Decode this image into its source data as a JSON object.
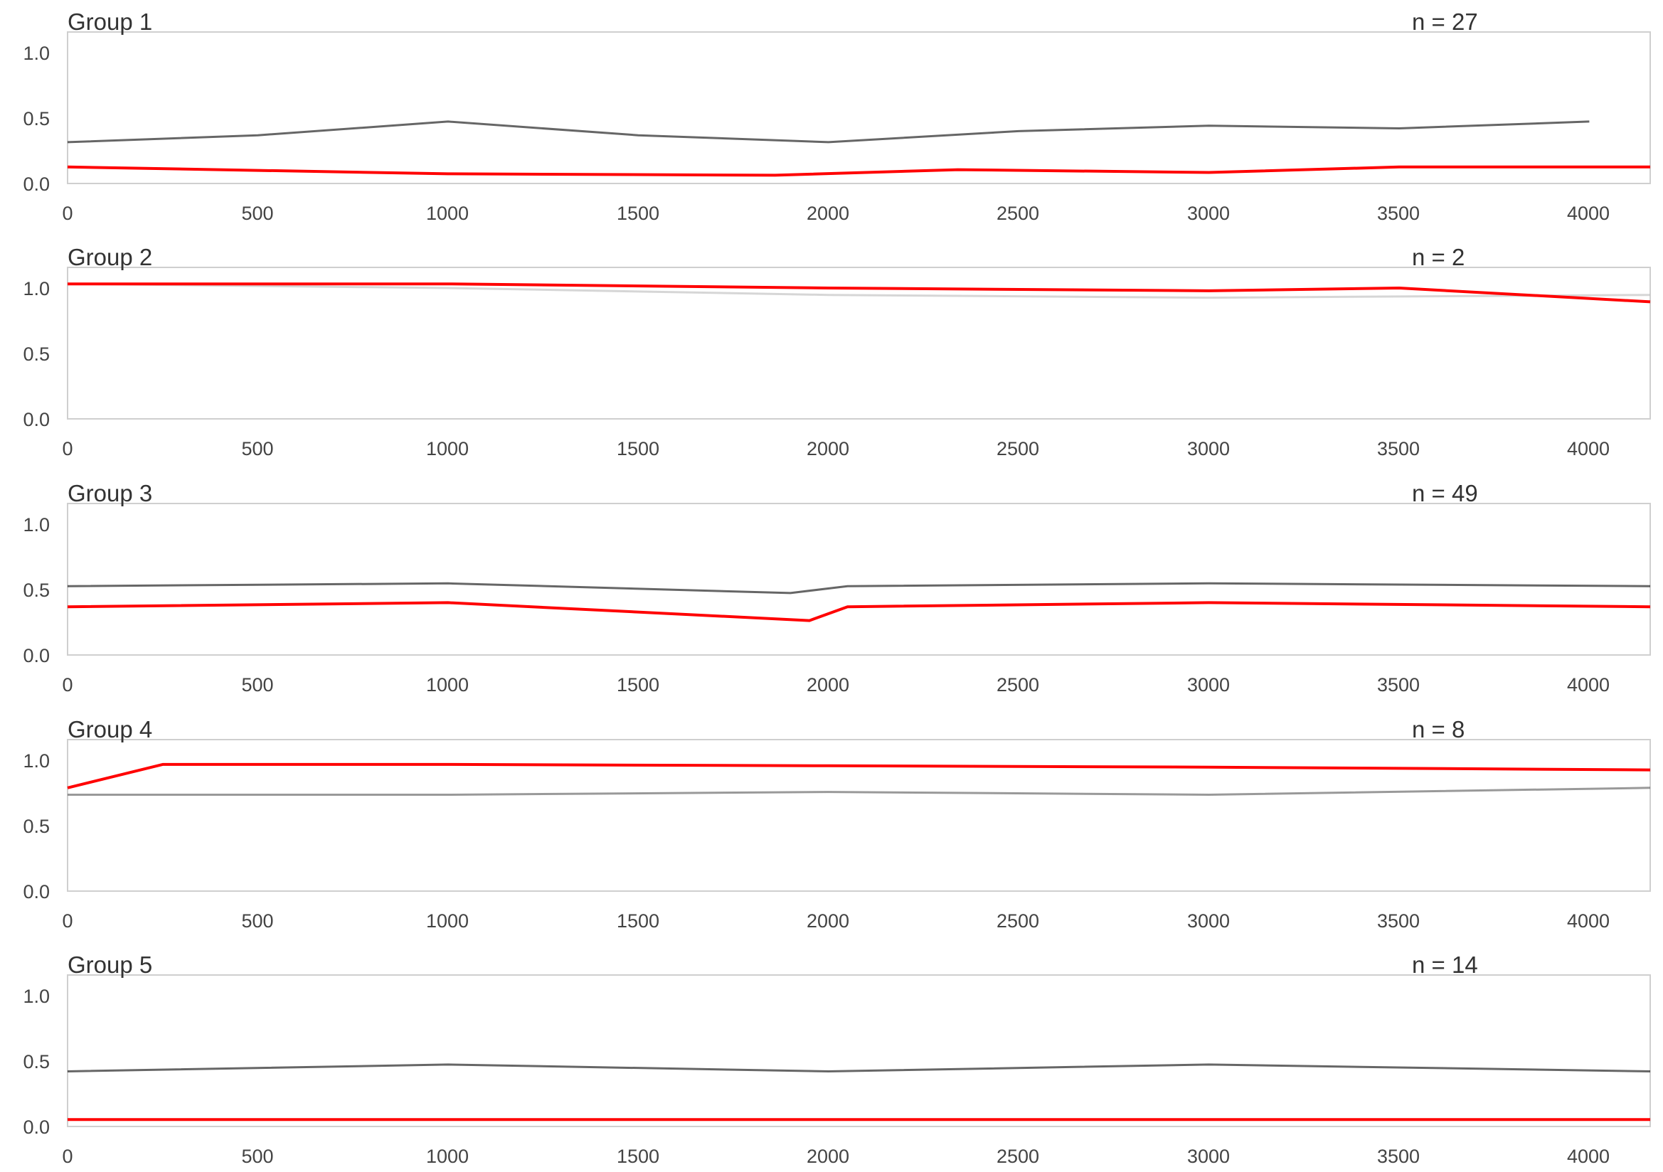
{
  "chart_data": [
    {
      "type": "line",
      "title": "Group 1",
      "annotation": "n = 27",
      "xlim": [
        0,
        4160
      ],
      "ylim": [
        0,
        1.1
      ],
      "xticks": [
        "0",
        "500",
        "1000",
        "1500",
        "2000",
        "2500",
        "3000",
        "3500",
        "4000"
      ],
      "yticks": [
        "0.0",
        "0.5",
        "1.0"
      ],
      "grid": false,
      "series": [
        {
          "color": "#000000",
          "values": [
            [
              0,
              0.3
            ],
            [
              500,
              0.35
            ],
            [
              1000,
              0.45
            ],
            [
              1500,
              0.35
            ],
            [
              2000,
              0.3
            ],
            [
              2500,
              0.38
            ],
            [
              3000,
              0.42
            ],
            [
              3500,
              0.4
            ],
            [
              4000,
              0.45
            ]
          ]
        },
        {
          "color": "#ff0000",
          "values": [
            [
              0,
              0.12
            ],
            [
              1000,
              0.07
            ],
            [
              1860,
              0.06
            ],
            [
              2340,
              0.1
            ],
            [
              3000,
              0.08
            ],
            [
              3500,
              0.12
            ],
            [
              4160,
              0.12
            ]
          ]
        }
      ]
    },
    {
      "type": "line",
      "title": "Group 2",
      "annotation": "n = 2",
      "xlim": [
        0,
        4160
      ],
      "ylim": [
        0,
        1.1
      ],
      "xticks": [
        "0",
        "500",
        "1000",
        "1500",
        "2000",
        "2500",
        "3000",
        "3500",
        "4000"
      ],
      "yticks": [
        "0.0",
        "0.5",
        "1.0"
      ],
      "grid": false,
      "series": [
        {
          "color": "#bbbbbb",
          "values": [
            [
              0,
              0.98
            ],
            [
              1000,
              0.95
            ],
            [
              2000,
              0.9
            ],
            [
              3000,
              0.88
            ],
            [
              4160,
              0.9
            ]
          ]
        },
        {
          "color": "#ff0000",
          "values": [
            [
              0,
              0.98
            ],
            [
              1000,
              0.98
            ],
            [
              2000,
              0.95
            ],
            [
              3000,
              0.93
            ],
            [
              3500,
              0.95
            ],
            [
              4160,
              0.85
            ]
          ]
        }
      ]
    },
    {
      "type": "line",
      "title": "Group 3",
      "annotation": "n = 49",
      "xlim": [
        0,
        4160
      ],
      "ylim": [
        0,
        1.1
      ],
      "xticks": [
        "0",
        "500",
        "1000",
        "1500",
        "2000",
        "2500",
        "3000",
        "3500",
        "4000"
      ],
      "yticks": [
        "0.0",
        "0.5",
        "1.0"
      ],
      "grid": false,
      "series": [
        {
          "color": "#000000",
          "values": [
            [
              0,
              0.5
            ],
            [
              1000,
              0.52
            ],
            [
              1900,
              0.45
            ],
            [
              2050,
              0.5
            ],
            [
              3000,
              0.52
            ],
            [
              4160,
              0.5
            ]
          ]
        },
        {
          "color": "#ff0000",
          "values": [
            [
              0,
              0.35
            ],
            [
              1000,
              0.38
            ],
            [
              1950,
              0.25
            ],
            [
              2050,
              0.35
            ],
            [
              3000,
              0.38
            ],
            [
              4160,
              0.35
            ]
          ]
        }
      ]
    },
    {
      "type": "line",
      "title": "Group 4",
      "annotation": "n = 8",
      "xlim": [
        0,
        4160
      ],
      "ylim": [
        0,
        1.1
      ],
      "xticks": [
        "0",
        "500",
        "1000",
        "1500",
        "2000",
        "2500",
        "3000",
        "3500",
        "4000"
      ],
      "yticks": [
        "0.0",
        "0.5",
        "1.0"
      ],
      "grid": false,
      "series": [
        {
          "color": "#555555",
          "values": [
            [
              0,
              0.7
            ],
            [
              1000,
              0.7
            ],
            [
              2000,
              0.72
            ],
            [
              3000,
              0.7
            ],
            [
              4160,
              0.75
            ]
          ]
        },
        {
          "color": "#ff0000",
          "values": [
            [
              0,
              0.75
            ],
            [
              250,
              0.92
            ],
            [
              1000,
              0.92
            ],
            [
              2000,
              0.91
            ],
            [
              3000,
              0.9
            ],
            [
              4160,
              0.88
            ]
          ]
        }
      ]
    },
    {
      "type": "line",
      "title": "Group 5",
      "annotation": "n = 14",
      "xlim": [
        0,
        4160
      ],
      "ylim": [
        0,
        1.1
      ],
      "xticks": [
        "0",
        "500",
        "1000",
        "1500",
        "2000",
        "2500",
        "3000",
        "3500",
        "4000"
      ],
      "yticks": [
        "0.0",
        "0.5",
        "1.0"
      ],
      "grid": false,
      "series": [
        {
          "color": "#000000",
          "values": [
            [
              0,
              0.4
            ],
            [
              1000,
              0.45
            ],
            [
              2000,
              0.4
            ],
            [
              3000,
              0.45
            ],
            [
              4160,
              0.4
            ]
          ]
        },
        {
          "color": "#ff0000",
          "values": [
            [
              0,
              0.05
            ],
            [
              1000,
              0.05
            ],
            [
              2000,
              0.05
            ],
            [
              3000,
              0.05
            ],
            [
              4160,
              0.05
            ]
          ]
        }
      ]
    }
  ]
}
